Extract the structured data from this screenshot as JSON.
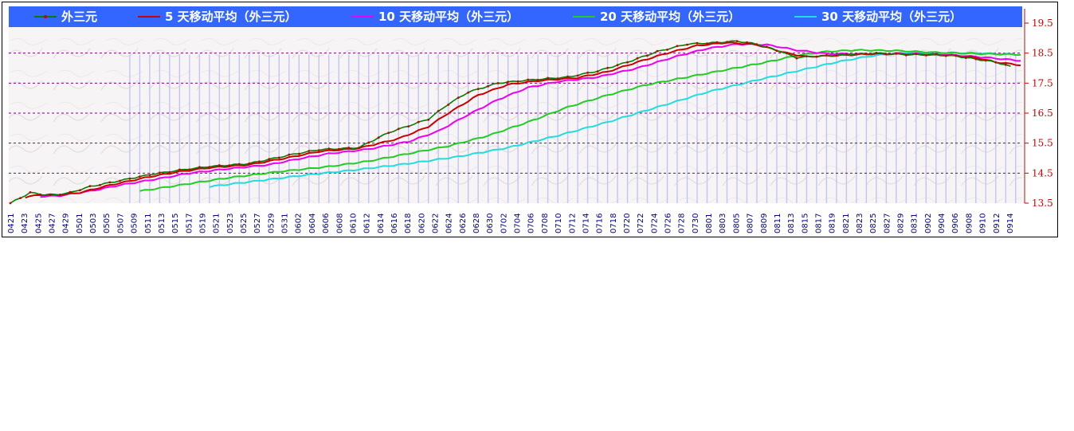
{
  "chart_data": {
    "type": "line",
    "title": "",
    "xlabel": "",
    "ylabel": "",
    "ylim": [
      13.5,
      19.5
    ],
    "y_ticks": [
      "13.5",
      "14.5",
      "15.5",
      "16.5",
      "17.5",
      "18.5",
      "19.5"
    ],
    "grid": "horizontal dashed, purple",
    "legend_position": "top",
    "x_tick_labels": [
      "0421",
      "0423",
      "0425",
      "0427",
      "0429",
      "0501",
      "0503",
      "0505",
      "0507",
      "0509",
      "0511",
      "0513",
      "0515",
      "0517",
      "0519",
      "0521",
      "0523",
      "0525",
      "0527",
      "0529",
      "0531",
      "0602",
      "0604",
      "0606",
      "0608",
      "0610",
      "0612",
      "0614",
      "0616",
      "0618",
      "0620",
      "0622",
      "0624",
      "0626",
      "0628",
      "0630",
      "0702",
      "0704",
      "0706",
      "0708",
      "0710",
      "0712",
      "0714",
      "0716",
      "0718",
      "0720",
      "0722",
      "0724",
      "0726",
      "0728",
      "0730",
      "0801",
      "0803",
      "0805",
      "0807",
      "0809",
      "0811",
      "0813",
      "0815",
      "0817",
      "0819",
      "0821",
      "0823",
      "0825",
      "0827",
      "0829",
      "0831",
      "0902",
      "0904",
      "0906",
      "0908",
      "0910",
      "0912",
      "0914"
    ],
    "series": [
      {
        "name": "外三元",
        "color": "#008000",
        "marker_color": "#cc0000",
        "keypoints": [
          [
            0,
            13.5
          ],
          [
            4,
            13.85
          ],
          [
            8,
            13.75
          ],
          [
            12,
            13.85
          ],
          [
            16,
            14.05
          ],
          [
            22,
            14.25
          ],
          [
            28,
            14.45
          ],
          [
            34,
            14.6
          ],
          [
            40,
            14.72
          ],
          [
            48,
            14.82
          ],
          [
            56,
            15.1
          ],
          [
            62,
            15.28
          ],
          [
            70,
            15.35
          ],
          [
            76,
            15.85
          ],
          [
            84,
            16.3
          ],
          [
            88,
            16.8
          ],
          [
            92,
            17.2
          ],
          [
            98,
            17.5
          ],
          [
            104,
            17.6
          ],
          [
            112,
            17.7
          ],
          [
            118,
            17.9
          ],
          [
            124,
            18.2
          ],
          [
            130,
            18.55
          ],
          [
            136,
            18.8
          ],
          [
            142,
            18.85
          ],
          [
            146,
            18.9
          ],
          [
            150,
            18.8
          ],
          [
            154,
            18.6
          ],
          [
            158,
            18.35
          ],
          [
            162,
            18.4
          ],
          [
            168,
            18.45
          ],
          [
            174,
            18.5
          ],
          [
            180,
            18.45
          ],
          [
            186,
            18.45
          ],
          [
            190,
            18.4
          ],
          [
            194,
            18.3
          ],
          [
            198,
            18.2
          ],
          [
            201,
            18.05
          ]
        ]
      },
      {
        "name": "5 天移动平均（外三元）",
        "color": "#cc0000",
        "keypoints": [
          [
            3,
            13.7
          ],
          [
            6,
            13.78
          ],
          [
            10,
            13.78
          ],
          [
            14,
            13.85
          ],
          [
            20,
            14.1
          ],
          [
            28,
            14.38
          ],
          [
            34,
            14.55
          ],
          [
            40,
            14.68
          ],
          [
            48,
            14.78
          ],
          [
            56,
            15.02
          ],
          [
            62,
            15.22
          ],
          [
            70,
            15.33
          ],
          [
            78,
            15.65
          ],
          [
            84,
            16.05
          ],
          [
            88,
            16.5
          ],
          [
            94,
            17.1
          ],
          [
            100,
            17.45
          ],
          [
            106,
            17.58
          ],
          [
            114,
            17.68
          ],
          [
            120,
            17.88
          ],
          [
            126,
            18.2
          ],
          [
            132,
            18.5
          ],
          [
            138,
            18.75
          ],
          [
            144,
            18.85
          ],
          [
            150,
            18.78
          ],
          [
            156,
            18.5
          ],
          [
            160,
            18.38
          ],
          [
            166,
            18.42
          ],
          [
            174,
            18.48
          ],
          [
            182,
            18.45
          ],
          [
            188,
            18.43
          ],
          [
            194,
            18.35
          ],
          [
            198,
            18.2
          ],
          [
            203,
            18.1
          ]
        ]
      },
      {
        "name": "10 天移动平均（外三元）",
        "color": "#ee00ee",
        "keypoints": [
          [
            6,
            13.72
          ],
          [
            10,
            13.75
          ],
          [
            16,
            13.9
          ],
          [
            22,
            14.1
          ],
          [
            30,
            14.32
          ],
          [
            36,
            14.5
          ],
          [
            44,
            14.65
          ],
          [
            52,
            14.78
          ],
          [
            58,
            14.98
          ],
          [
            64,
            15.15
          ],
          [
            72,
            15.3
          ],
          [
            80,
            15.55
          ],
          [
            86,
            15.9
          ],
          [
            92,
            16.45
          ],
          [
            98,
            16.95
          ],
          [
            104,
            17.35
          ],
          [
            110,
            17.55
          ],
          [
            118,
            17.7
          ],
          [
            126,
            18.0
          ],
          [
            134,
            18.4
          ],
          [
            140,
            18.65
          ],
          [
            146,
            18.8
          ],
          [
            152,
            18.78
          ],
          [
            158,
            18.6
          ],
          [
            164,
            18.48
          ],
          [
            172,
            18.47
          ],
          [
            180,
            18.48
          ],
          [
            188,
            18.45
          ],
          [
            194,
            18.38
          ],
          [
            203,
            18.25
          ]
        ]
      },
      {
        "name": "20 天移动平均（外三元）",
        "color": "#22cc22",
        "keypoints": [
          [
            26,
            13.9
          ],
          [
            34,
            14.1
          ],
          [
            44,
            14.35
          ],
          [
            54,
            14.55
          ],
          [
            64,
            14.72
          ],
          [
            72,
            14.9
          ],
          [
            80,
            15.15
          ],
          [
            88,
            15.4
          ],
          [
            96,
            15.75
          ],
          [
            104,
            16.2
          ],
          [
            112,
            16.7
          ],
          [
            120,
            17.1
          ],
          [
            128,
            17.45
          ],
          [
            136,
            17.7
          ],
          [
            144,
            17.95
          ],
          [
            152,
            18.2
          ],
          [
            158,
            18.42
          ],
          [
            164,
            18.55
          ],
          [
            170,
            18.6
          ],
          [
            178,
            18.58
          ],
          [
            186,
            18.52
          ],
          [
            194,
            18.48
          ],
          [
            203,
            18.45
          ]
        ]
      },
      {
        "name": "30 天移动平均（外三元）",
        "color": "#22dddd",
        "keypoints": [
          [
            40,
            14.05
          ],
          [
            50,
            14.25
          ],
          [
            60,
            14.45
          ],
          [
            70,
            14.62
          ],
          [
            80,
            14.82
          ],
          [
            90,
            15.05
          ],
          [
            100,
            15.35
          ],
          [
            110,
            15.75
          ],
          [
            120,
            16.2
          ],
          [
            130,
            16.7
          ],
          [
            140,
            17.2
          ],
          [
            150,
            17.6
          ],
          [
            158,
            17.9
          ],
          [
            166,
            18.2
          ],
          [
            172,
            18.38
          ],
          [
            178,
            18.5
          ],
          [
            186,
            18.52
          ],
          [
            194,
            18.5
          ],
          [
            203,
            18.45
          ]
        ]
      }
    ]
  }
}
